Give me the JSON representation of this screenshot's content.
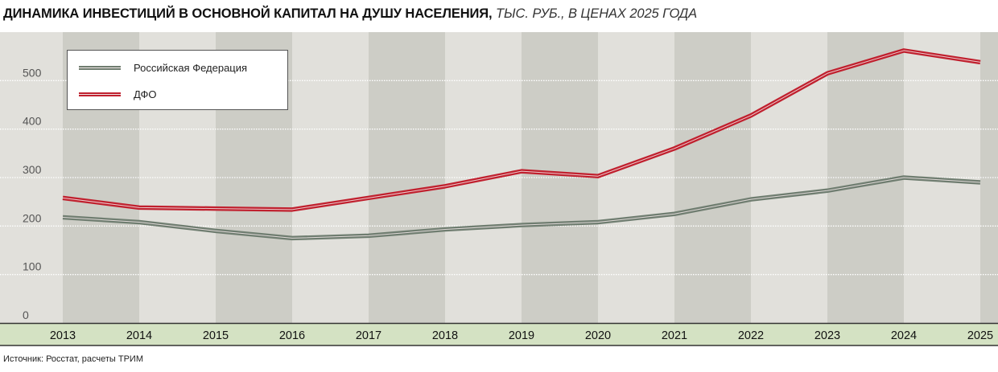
{
  "title": {
    "bold": "ДИНАМИКА ИНВЕСТИЦИЙ В ОСНОВНОЙ КАПИТАЛ НА ДУШУ НАСЕЛЕНИЯ,",
    "italic": "ТЫС. РУБ., В ЦЕНАХ 2025 ГОДА"
  },
  "source": "Источник: Росстат, расчеты ТРИМ",
  "colors": {
    "rf": "#6f7d70",
    "dfo": "#c0202e",
    "band_light": "#e1e0db",
    "band_dark": "#cdcdc6",
    "axis_strip": "#d4e2c3",
    "grid": "#ffffff"
  },
  "chart_data": {
    "type": "line",
    "x": [
      "2013",
      "2014",
      "2015",
      "2016",
      "2017",
      "2018",
      "2019",
      "2020",
      "2021",
      "2022",
      "2023",
      "2024",
      "2025"
    ],
    "yticks": [
      "0",
      "100",
      "200",
      "300",
      "400",
      "500"
    ],
    "ylim": [
      0,
      600
    ],
    "grid": true,
    "legend_position": "top-left",
    "series": [
      {
        "name": "Российская Федерация",
        "color": "#6f7d70",
        "values": [
          218,
          208,
          190,
          175,
          180,
          193,
          202,
          208,
          225,
          255,
          273,
          300,
          290
        ]
      },
      {
        "name": "ДФО",
        "color": "#c0202e",
        "values": [
          258,
          238,
          236,
          234,
          258,
          282,
          313,
          303,
          360,
          428,
          515,
          562,
          538
        ]
      }
    ]
  }
}
